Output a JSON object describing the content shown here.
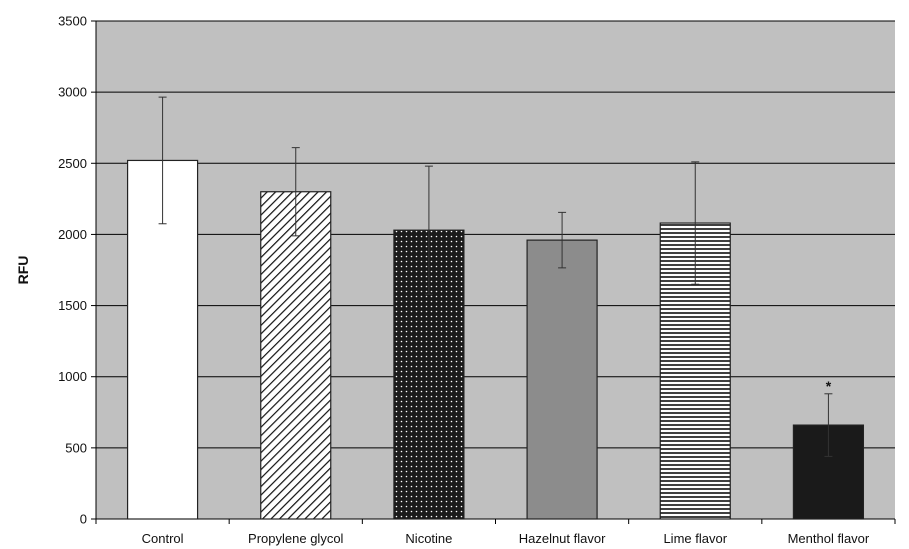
{
  "chart_data": {
    "type": "bar",
    "title": "",
    "xlabel": "",
    "ylabel": "RFU",
    "ylim": [
      0,
      3500
    ],
    "yticks": [
      0,
      500,
      1000,
      1500,
      2000,
      2500,
      3000,
      3500
    ],
    "grid": true,
    "legend": "none",
    "categories": [
      "Control",
      "Propylene glycol",
      "Nicotine",
      "Hazelnut flavor",
      "Lime flavor",
      "Menthol flavor"
    ],
    "values": [
      2520,
      2300,
      2030,
      1960,
      2080,
      660
    ],
    "errors": [
      445,
      310,
      450,
      195,
      430,
      220
    ],
    "fills": [
      "white",
      "diagonal-stripes",
      "dots",
      "gray",
      "horizontal-stripes",
      "black"
    ],
    "annotations": [
      {
        "category": "Menthol flavor",
        "text": "*"
      }
    ],
    "colors": {
      "plot_background": "#c0c0c0",
      "bar_outline": "#222222",
      "gray_bar": "#8c8c8c",
      "black_bar": "#1a1a1a"
    }
  }
}
